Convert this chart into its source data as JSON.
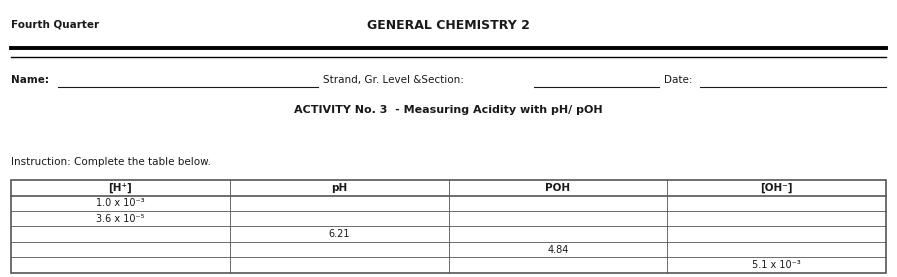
{
  "header_left": "Fourth Quarter",
  "header_center": "GENERAL CHEMISTRY 2",
  "name_label": "Name:",
  "strand_label": "Strand, Gr. Level &Section:",
  "date_label": "Date:",
  "activity_title": "ACTIVITY No. 3  - Measuring Acidity with pH/ pOH",
  "instruction": "Instruction: Complete the table below.",
  "col_headers": [
    "[H⁺]",
    "pH",
    "POH",
    "[OH⁻]"
  ],
  "table_data": [
    [
      "1.0 x 10⁻³",
      "",
      "",
      ""
    ],
    [
      "3.6 x 10⁻⁵",
      "",
      "",
      ""
    ],
    [
      "",
      "6.21",
      "",
      ""
    ],
    [
      "",
      "",
      "4.84",
      ""
    ],
    [
      "",
      "",
      "",
      "5.1 x 10⁻³"
    ]
  ],
  "bg_color": "#ffffff",
  "text_color": "#1a1a1a",
  "border_color": "#555555",
  "header_line_color": "#000000",
  "fig_width": 8.97,
  "fig_height": 2.77,
  "dpi": 100
}
